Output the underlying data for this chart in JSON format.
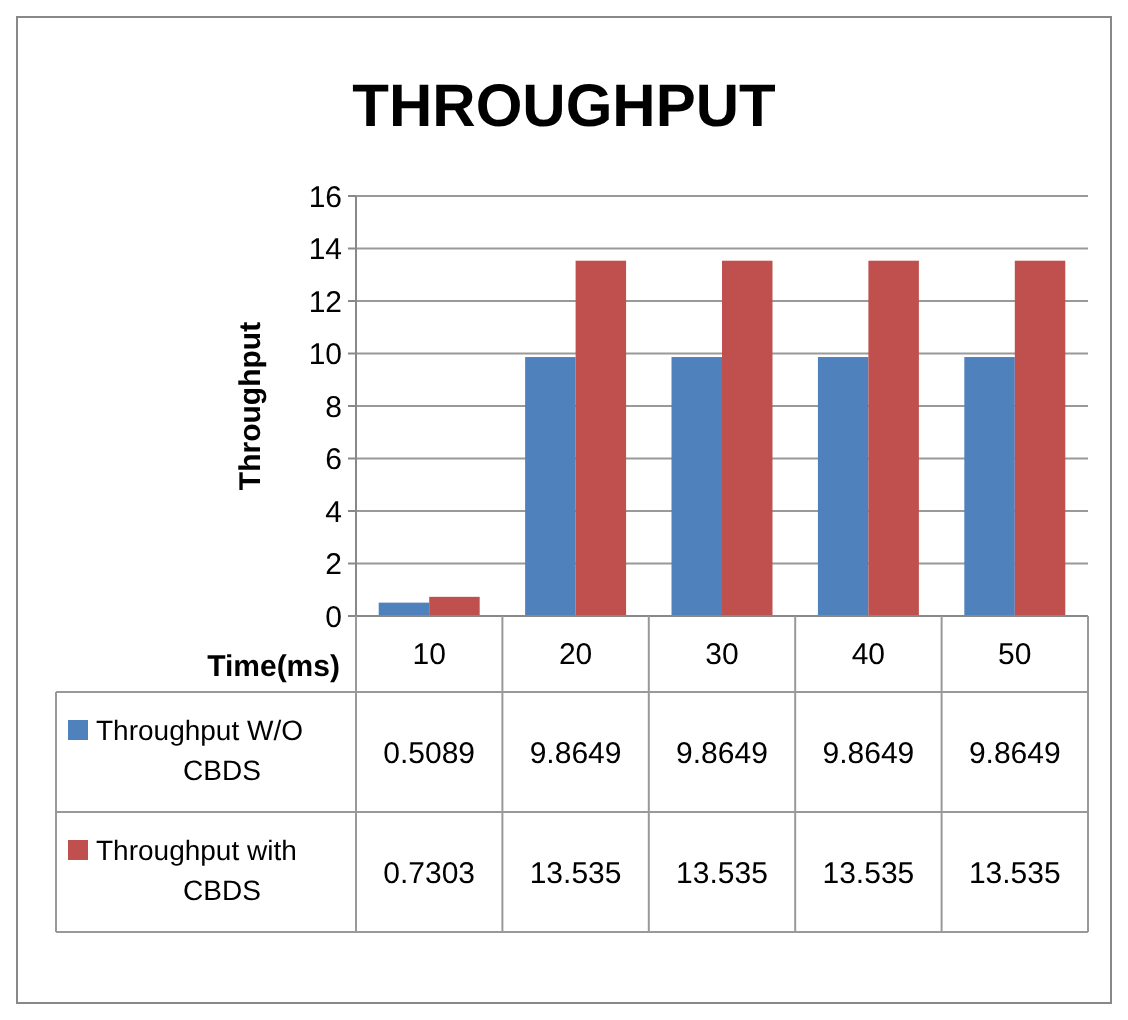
{
  "chart_data": {
    "type": "bar",
    "title": "THROUGHPUT",
    "xlabel": "Time(ms)",
    "ylabel": "Throughput",
    "categories": [
      "10",
      "20",
      "30",
      "40",
      "50"
    ],
    "series": [
      {
        "name": "Throughput W/O CBDS",
        "color": "#4f81bd",
        "values": [
          0.5089,
          9.8649,
          9.8649,
          9.8649,
          9.8649
        ]
      },
      {
        "name": "Throughput with CBDS",
        "color": "#c0504d",
        "values": [
          0.7303,
          13.535,
          13.535,
          13.535,
          13.535
        ]
      }
    ],
    "ylim": [
      0,
      16
    ],
    "yticks": [
      0,
      2,
      4,
      6,
      8,
      10,
      12,
      14,
      16
    ],
    "grid": "y",
    "legend": "bottom left",
    "data_labels": true
  }
}
